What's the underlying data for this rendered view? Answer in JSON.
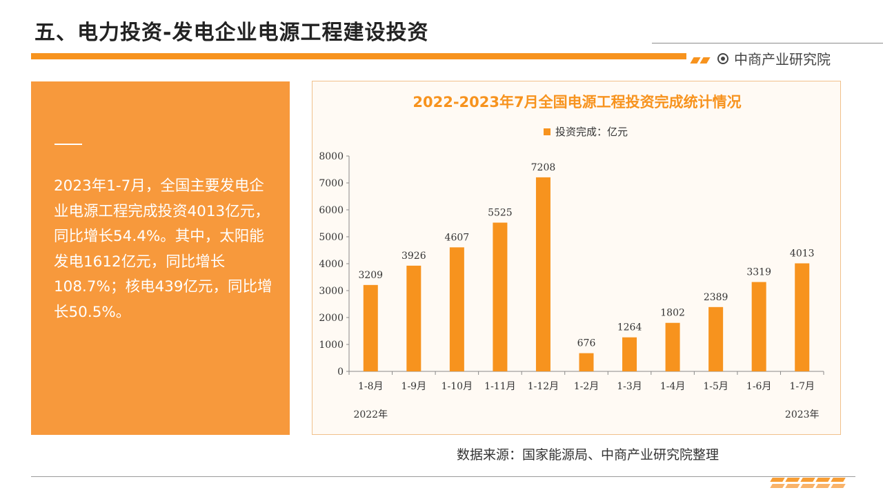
{
  "header": {
    "title": "五、电力投资-发电企业电源工程建设投资",
    "brand": "中商产业研究院"
  },
  "summary": {
    "text": "2023年1-7月，全国主要发电企业电源工程完成投资4013亿元，同比增长54.4%。其中，太阳能发电1612亿元，同比增长108.7%；核电439亿元，同比增长50.5%。"
  },
  "source": "数据来源：国家能源局、中商产业研究院整理",
  "colors": {
    "accent": "#f7931e",
    "panel": "#f7993c"
  },
  "chart_data": {
    "type": "bar",
    "title": "2022-2023年7月全国电源工程投资完成统计情况",
    "categories": [
      "1-8月",
      "1-9月",
      "1-10月",
      "1-11月",
      "1-12月",
      "1-2月",
      "1-3月",
      "1-4月",
      "1-5月",
      "1-6月",
      "1-7月"
    ],
    "series": [
      {
        "name": "投资完成：亿元",
        "values": [
          3209,
          3926,
          4607,
          5525,
          7208,
          676,
          1264,
          1802,
          2389,
          3319,
          4013
        ]
      }
    ],
    "ylim": [
      0,
      8000
    ],
    "yticks": [
      0,
      1000,
      2000,
      3000,
      4000,
      5000,
      6000,
      7000,
      8000
    ],
    "group_labels": [
      "2022年",
      "2023年"
    ],
    "legend_position": "top-center",
    "grid": false
  }
}
